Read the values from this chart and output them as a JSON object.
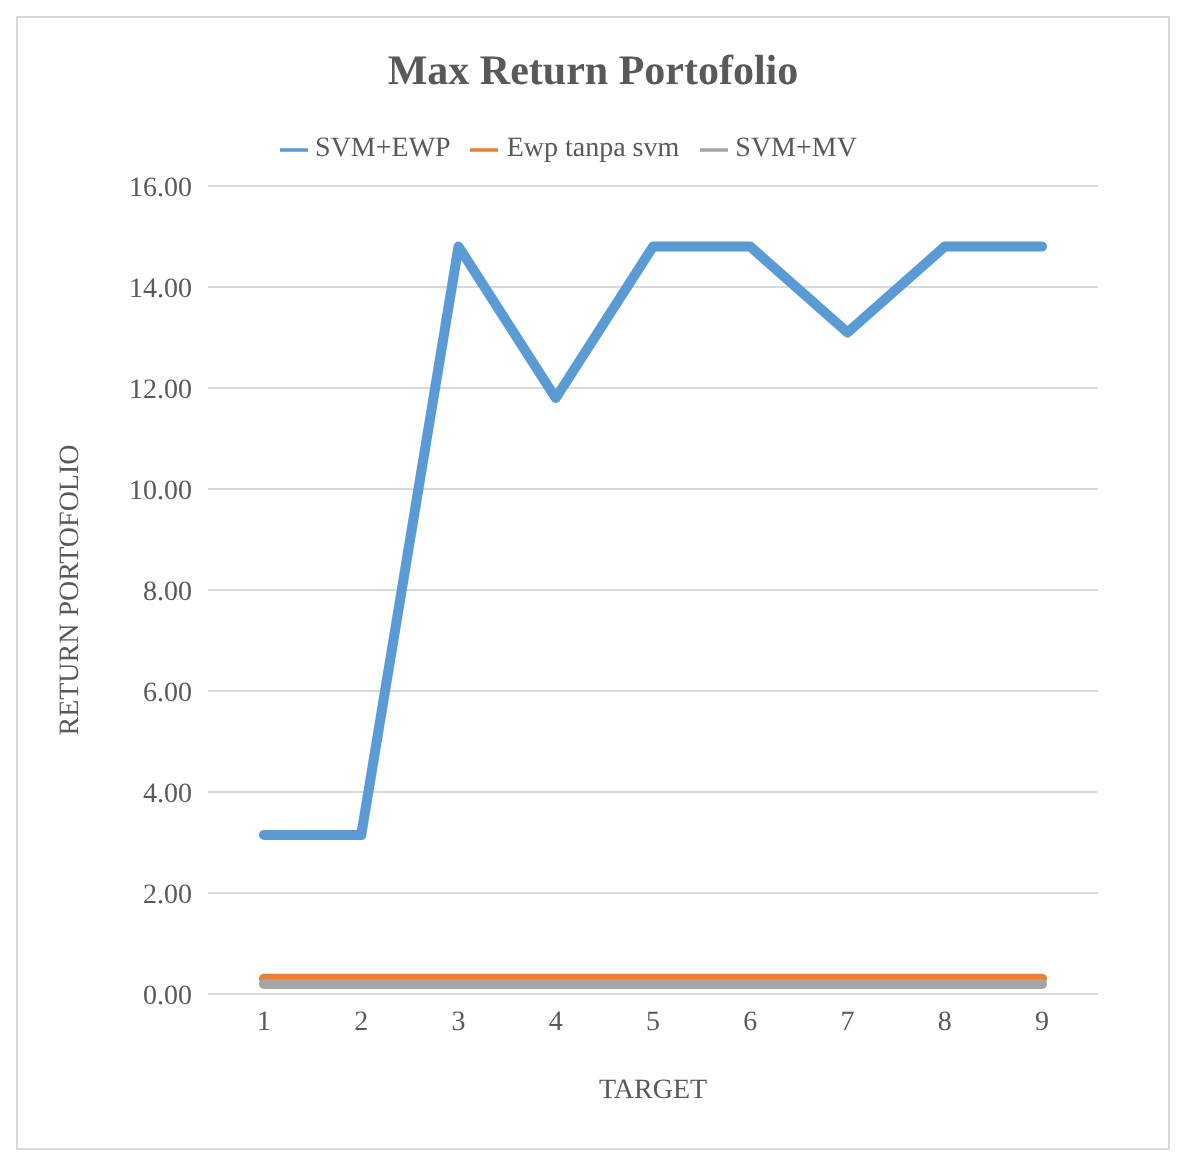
{
  "chart_data": {
    "type": "line",
    "title": "Max Return Portofolio",
    "xlabel": "TARGET",
    "ylabel": "RETURN PORTOFOLIO",
    "categories": [
      "1",
      "2",
      "3",
      "4",
      "5",
      "6",
      "7",
      "8",
      "9"
    ],
    "series": [
      {
        "name": "SVM+EWP",
        "color": "#5b9bd5",
        "values": [
          3.15,
          3.15,
          14.8,
          11.8,
          14.8,
          14.8,
          13.1,
          14.8,
          14.8
        ]
      },
      {
        "name": "Ewp tanpa svm",
        "color": "#ed7d31",
        "values": [
          0.3,
          0.3,
          0.3,
          0.3,
          0.3,
          0.3,
          0.3,
          0.3,
          0.3
        ]
      },
      {
        "name": "SVM+MV",
        "color": "#a5a5a5",
        "values": [
          0.2,
          0.2,
          0.2,
          0.2,
          0.2,
          0.2,
          0.2,
          0.2,
          0.2
        ]
      }
    ],
    "ylim": [
      0,
      16
    ],
    "yticks": [
      {
        "value": 0,
        "label": "0.00"
      },
      {
        "value": 2,
        "label": "2.00"
      },
      {
        "value": 4,
        "label": "4.00"
      },
      {
        "value": 6,
        "label": "6.00"
      },
      {
        "value": 8,
        "label": "8.00"
      },
      {
        "value": 10,
        "label": "10.00"
      },
      {
        "value": 12,
        "label": "12.00"
      },
      {
        "value": 14,
        "label": "14.00"
      },
      {
        "value": 16,
        "label": "16.00"
      }
    ],
    "grid": "y",
    "legend": "top",
    "marker": "none",
    "line_style": "solid"
  }
}
